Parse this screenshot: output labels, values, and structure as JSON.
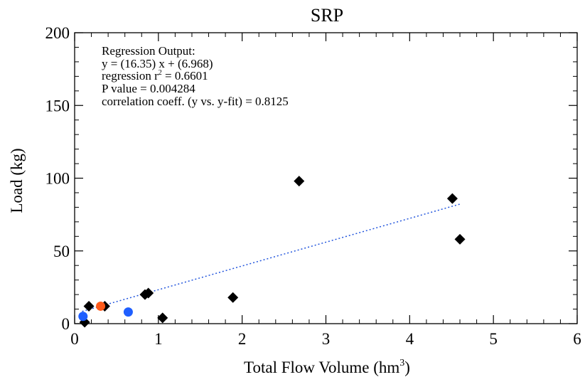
{
  "chart_data": {
    "type": "scatter",
    "title": "SRP",
    "xlabel": "Total Flow Volume (hm",
    "xlabel_sup": "3",
    "xlabel_tail": ")",
    "ylabel": "Load (kg)",
    "xlim": [
      0,
      6
    ],
    "ylim": [
      0,
      200
    ],
    "x_ticks": [
      0,
      1,
      2,
      3,
      4,
      5,
      6
    ],
    "x_tick_labels": [
      "0",
      "1",
      "2",
      "3",
      "4",
      "5",
      "6"
    ],
    "y_ticks": [
      0,
      50,
      100,
      150,
      200
    ],
    "y_tick_labels": [
      "0",
      "50",
      "100",
      "150",
      "200"
    ],
    "grid": false,
    "colors": {
      "diamond": "#000000",
      "blue_point": "#1f5fff",
      "orange_point": "#ff5a1a",
      "regression": "#2255dd",
      "annotation": "#2255dd"
    },
    "series": [
      {
        "marker": "diamond",
        "color": "#000000",
        "points": [
          {
            "x": 0.12,
            "y": 1
          },
          {
            "x": 0.17,
            "y": 12
          },
          {
            "x": 0.36,
            "y": 12
          },
          {
            "x": 0.84,
            "y": 20
          },
          {
            "x": 0.88,
            "y": 21
          },
          {
            "x": 1.05,
            "y": 4
          },
          {
            "x": 1.89,
            "y": 18
          },
          {
            "x": 2.68,
            "y": 98
          },
          {
            "x": 4.51,
            "y": 86
          },
          {
            "x": 4.6,
            "y": 58
          }
        ]
      },
      {
        "marker": "circle",
        "color": "#1f5fff",
        "points": [
          {
            "x": 0.1,
            "y": 5
          },
          {
            "x": 0.64,
            "y": 8
          }
        ]
      },
      {
        "marker": "circle",
        "color": "#ff5a1a",
        "points": [
          {
            "x": 0.31,
            "y": 12
          }
        ]
      }
    ],
    "regression": {
      "slope": 16.35,
      "intercept": 6.968,
      "x_range": [
        0.09,
        4.6
      ],
      "style": "dotted"
    },
    "annotation": {
      "title": "Regression Output:",
      "equation": "y = (16.35) x + (6.968)",
      "r2_prefix": "regression r",
      "r2_sup": "2",
      "r2_value": " = 0.6601",
      "p_value": "P value = 0.004284",
      "correlation": "correlation coeff. (y vs. y-fit) = 0.8125"
    }
  }
}
